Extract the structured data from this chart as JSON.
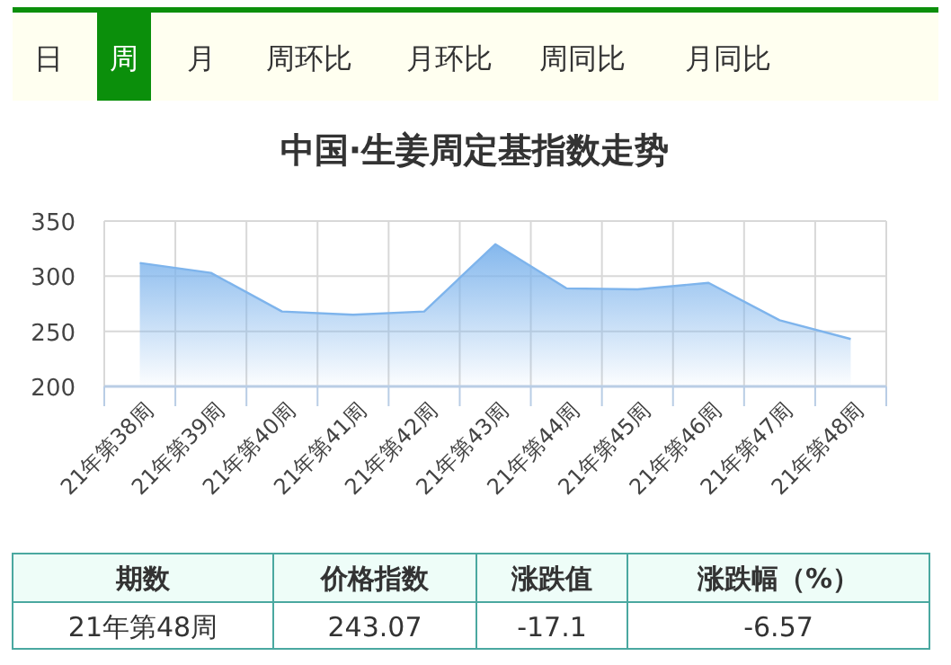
{
  "chart_data": {
    "type": "area",
    "title": "中国·生姜周定基指数走势",
    "categories": [
      "21年第38周",
      "21年第39周",
      "21年第40周",
      "21年第41周",
      "21年第42周",
      "21年第43周",
      "21年第44周",
      "21年第45周",
      "21年第46周",
      "21年第47周",
      "21年第48周"
    ],
    "series": [
      {
        "color": "#7eb4ec",
        "values": [
          312,
          303,
          268,
          265,
          268,
          329,
          289,
          288,
          294,
          260,
          243
        ]
      }
    ],
    "ylim": [
      200,
      350
    ],
    "yticks": [
      200,
      250,
      300,
      350
    ],
    "grid": true,
    "annotations": [
      "日",
      "周",
      "月",
      "周环比",
      "月环比",
      "周同比",
      "月同比",
      "期数",
      "价格指数",
      "涨跌值",
      "涨跌幅（%）",
      "21年第48周",
      "243.07",
      "-17.1",
      "-6.57"
    ]
  }
}
